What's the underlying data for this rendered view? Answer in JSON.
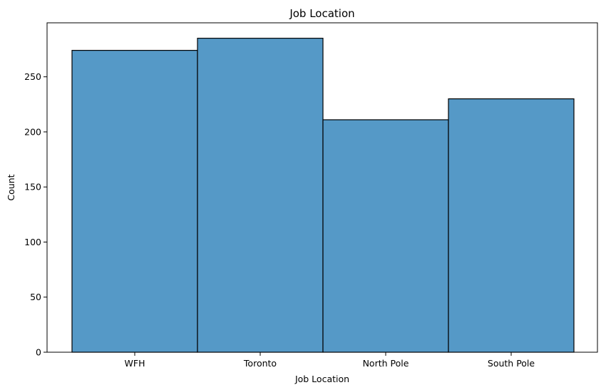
{
  "chart_data": {
    "type": "bar",
    "title": "Job Location",
    "xlabel": "Job Location",
    "ylabel": "Count",
    "categories": [
      "WFH",
      "Toronto",
      "North Pole",
      "South Pole"
    ],
    "values": [
      274,
      285,
      211,
      230
    ],
    "ylim": [
      0,
      299
    ],
    "yticks": [
      0,
      50,
      100,
      150,
      200,
      250
    ],
    "grid": false,
    "legend": "none",
    "bar_color": "#5599c7",
    "edge_color": "#000000"
  }
}
